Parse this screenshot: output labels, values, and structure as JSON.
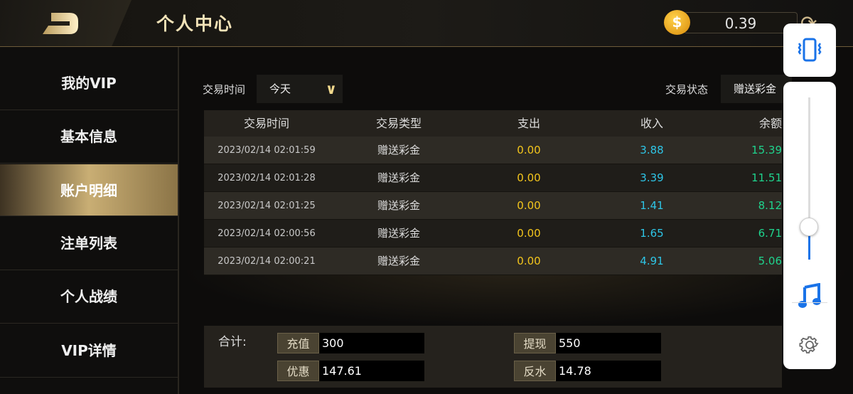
{
  "header": {
    "title": "个人中心",
    "balance": "0.39",
    "coin_icon": "dollar-coin-icon",
    "refresh_icon": "refresh-icon",
    "back_icon": "back-icon"
  },
  "sidebar": {
    "items": [
      {
        "label": "我的VIP"
      },
      {
        "label": "基本信息"
      },
      {
        "label": "账户明细",
        "active": true
      },
      {
        "label": "注单列表"
      },
      {
        "label": "个人战绩"
      },
      {
        "label": "VIP详情"
      }
    ]
  },
  "filters": {
    "time_label": "交易时间",
    "time_value": "今天",
    "status_label": "交易状态",
    "status_value": "赠送彩金"
  },
  "table": {
    "columns": [
      "交易时间",
      "交易类型",
      "支出",
      "收入",
      "余额"
    ],
    "rows": [
      [
        "2023/02/14 02:01:59",
        "赠送彩金",
        "0.00",
        "3.88",
        "15.39"
      ],
      [
        "2023/02/14 02:01:28",
        "赠送彩金",
        "0.00",
        "3.39",
        "11.51"
      ],
      [
        "2023/02/14 02:01:25",
        "赠送彩金",
        "0.00",
        "1.41",
        "8.12"
      ],
      [
        "2023/02/14 02:00:56",
        "赠送彩金",
        "0.00",
        "1.65",
        "6.71"
      ],
      [
        "2023/02/14 02:00:21",
        "赠送彩金",
        "0.00",
        "4.91",
        "5.06"
      ]
    ]
  },
  "summary": {
    "label": "合计:",
    "recharge_label": "充值",
    "recharge": "300",
    "withdraw_label": "提现",
    "withdraw": "550",
    "discount_label": "优惠",
    "discount": "147.61",
    "rebate_label": "反水",
    "rebate": "14.78"
  },
  "volume_panel": {
    "level_percent": 20,
    "accent": "#1a73e8",
    "icons": [
      "vibrate-icon",
      "music-note-icon",
      "settings-gear-icon"
    ]
  },
  "colors": {
    "expense": "#f3c51c",
    "income": "#2ec5e6",
    "balance": "#1fd38d",
    "gold": "#f3e3b8"
  }
}
